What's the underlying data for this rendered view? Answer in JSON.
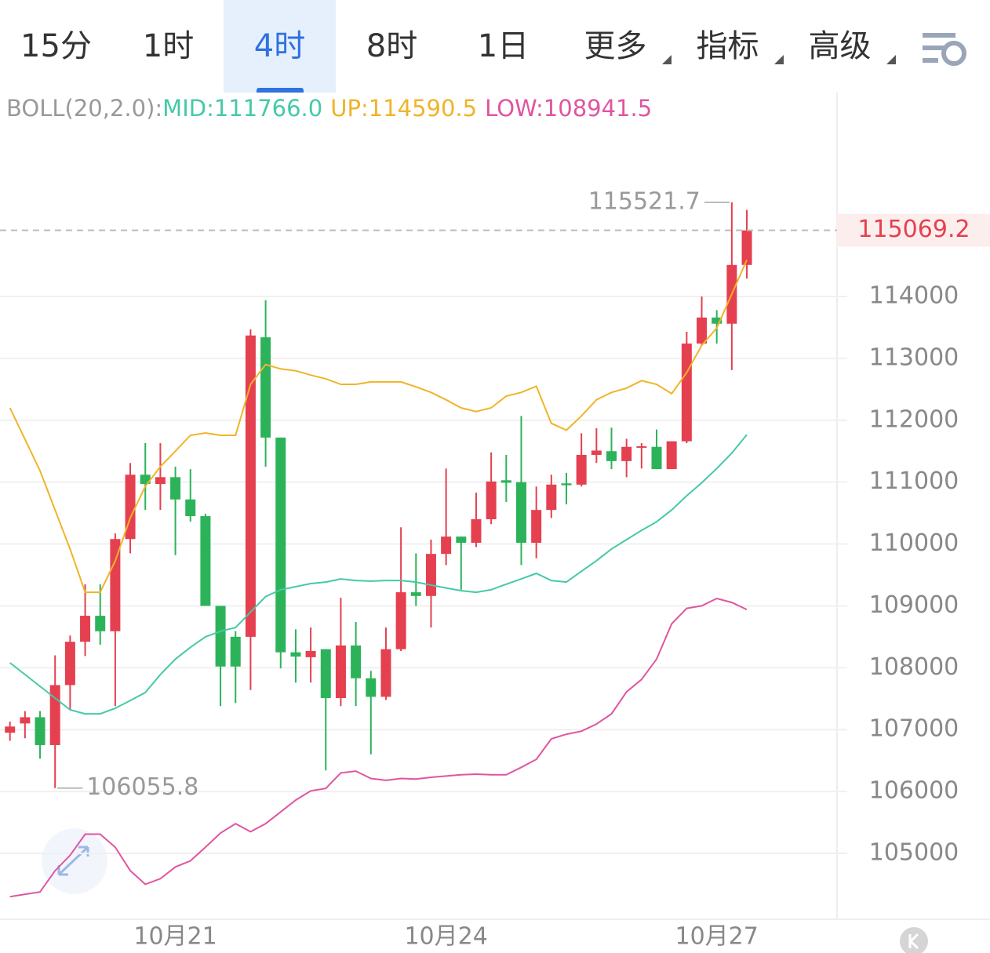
{
  "tabs": [
    {
      "label": "15分"
    },
    {
      "label": "1时"
    },
    {
      "label": "4时"
    },
    {
      "label": "8时"
    },
    {
      "label": "1日"
    },
    {
      "label": "更多",
      "dropdown": true
    },
    {
      "label": "指标",
      "dropdown": true
    },
    {
      "label": "高级",
      "dropdown": true
    }
  ],
  "selected_tab": 2,
  "chart_data": {
    "type": "candlestick",
    "indicator": "BOLL(20,2.0):",
    "categories": [
      null,
      null,
      null,
      null,
      null,
      null,
      null,
      null,
      null,
      null,
      null,
      "10月21",
      null,
      null,
      null,
      null,
      null,
      null,
      null,
      null,
      null,
      null,
      null,
      null,
      null,
      null,
      null,
      null,
      null,
      "10月24",
      null,
      null,
      null,
      null,
      null,
      null,
      null,
      null,
      null,
      null,
      null,
      null,
      null,
      null,
      null,
      null,
      null,
      "10月27",
      null,
      null
    ],
    "open": [
      106950,
      107100,
      107200,
      106750,
      107720,
      108420,
      108840,
      108590,
      110080,
      111120,
      110970,
      111080,
      110720,
      110450,
      109000,
      108500,
      108500,
      113340,
      111720,
      108250,
      108170,
      108300,
      107510,
      108360,
      107830,
      107530,
      108300,
      109220,
      109160,
      109840,
      110120,
      110020,
      110400,
      111030,
      111000,
      110020,
      110550,
      110980,
      110960,
      111440,
      111500,
      111340,
      111560,
      111570,
      111210,
      111660,
      113240,
      113660,
      113560,
      114510
    ],
    "high": [
      107130,
      107300,
      107300,
      108200,
      108520,
      109350,
      109350,
      110170,
      111310,
      111630,
      111630,
      111250,
      111210,
      110490,
      109000,
      108590,
      113470,
      113940,
      111720,
      108620,
      108650,
      108300,
      109130,
      108740,
      107950,
      108650,
      110270,
      109850,
      110070,
      111220,
      110120,
      110830,
      111480,
      111440,
      112070,
      110930,
      111120,
      111150,
      111790,
      111870,
      111880,
      111700,
      111630,
      111850,
      111660,
      113430,
      114000,
      113780,
      115521.7,
      115400
    ],
    "low": [
      106820,
      106860,
      106530,
      106055.8,
      107320,
      108190,
      108370,
      107380,
      109850,
      110550,
      110550,
      109820,
      110360,
      109000,
      107380,
      107430,
      107640,
      111250,
      107990,
      107760,
      107760,
      106340,
      107380,
      107380,
      106600,
      107480,
      108270,
      109000,
      108650,
      109660,
      109260,
      109950,
      110320,
      110680,
      109660,
      109770,
      110420,
      110640,
      110930,
      111310,
      111210,
      111080,
      111220,
      111210,
      111210,
      111630,
      113210,
      113240,
      112810,
      114290
    ],
    "close": [
      107050,
      107200,
      106750,
      107720,
      108420,
      108840,
      108590,
      110080,
      111120,
      110970,
      111080,
      110720,
      110450,
      109000,
      108020,
      108020,
      113370,
      111720,
      108250,
      108180,
      108270,
      107510,
      108360,
      107830,
      107530,
      108300,
      109220,
      109160,
      109840,
      110120,
      110020,
      110400,
      111010,
      110990,
      110020,
      110550,
      110960,
      110950,
      111440,
      111510,
      111340,
      111570,
      111580,
      111210,
      111660,
      113240,
      113660,
      113560,
      114510,
      115069.2
    ],
    "up_color": "#e5404f",
    "down_color": "#2cb35a",
    "bands": [
      {
        "label": "MID:111766.0",
        "color": "#45c9a8",
        "values": [
          108080,
          107890,
          107700,
          107510,
          107320,
          107255,
          107255,
          107345,
          107470,
          107600,
          107890,
          108140,
          108330,
          108500,
          108590,
          108650,
          108900,
          109150,
          109260,
          109310,
          109360,
          109385,
          109435,
          109410,
          109400,
          109410,
          109410,
          109385,
          109335,
          109290,
          109245,
          109220,
          109260,
          109350,
          109435,
          109525,
          109410,
          109385,
          109560,
          109730,
          109920,
          110070,
          110220,
          110360,
          110550,
          110780,
          110990,
          111220,
          111470,
          111766
        ]
      },
      {
        "label": "UP:114590.5",
        "color": "#f0b429",
        "values": [
          112200,
          111690,
          111185,
          110550,
          109917,
          109220,
          109220,
          109727,
          110424,
          110930,
          111250,
          111500,
          111756,
          111794,
          111756,
          111756,
          112580,
          112900,
          112830,
          112800,
          112730,
          112670,
          112580,
          112580,
          112620,
          112620,
          112620,
          112540,
          112450,
          112330,
          112200,
          112140,
          112200,
          112390,
          112450,
          112550,
          111950,
          111840,
          112070,
          112330,
          112450,
          112520,
          112640,
          112580,
          112430,
          112770,
          113210,
          113490,
          114040,
          114590.5
        ]
      },
      {
        "label": "LOW:108941.5",
        "color": "#e0559f",
        "values": [
          104300,
          104340,
          104376,
          104720,
          104970,
          105310,
          105310,
          105100,
          104720,
          104500,
          104590,
          104780,
          104880,
          105100,
          105330,
          105480,
          105350,
          105480,
          105670,
          105860,
          106010,
          106050,
          106300,
          106330,
          106210,
          106180,
          106210,
          106200,
          106230,
          106250,
          106270,
          106280,
          106270,
          106270,
          106390,
          106520,
          106850,
          106925,
          106975,
          107090,
          107255,
          107610,
          107810,
          108140,
          108710,
          108960,
          109000,
          109120,
          109055,
          108941.5
        ]
      }
    ],
    "ylim": [
      103935,
      117296
    ],
    "yticks": [
      105000,
      106000,
      107000,
      108000,
      109000,
      110000,
      111000,
      112000,
      113000,
      114000
    ],
    "grid": true
  }
}
